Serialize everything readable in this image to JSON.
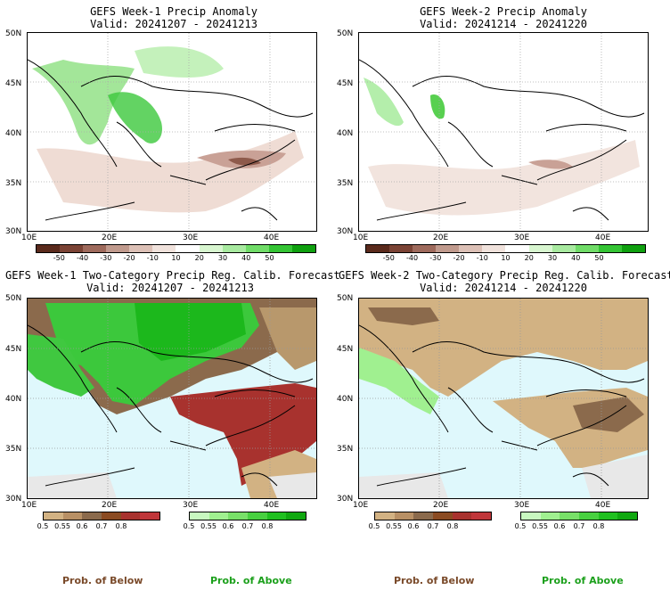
{
  "panels": {
    "p1": {
      "title1": "GEFS Week-1 Precip Anomaly",
      "title2": "Valid: 20241207 - 20241213"
    },
    "p2": {
      "title1": "GEFS Week-2 Precip Anomaly",
      "title2": "Valid: 20241214 - 20241220"
    },
    "p3": {
      "title1": "GEFS Week-1 Two-Category Precip Reg. Calib. Forecast",
      "title2": "Valid: 20241207 - 20241213"
    },
    "p4": {
      "title1": "GEFS Week-2 Two-Category Precip Reg. Calib. Forecast",
      "title2": "Valid: 20241214 - 20241220"
    }
  },
  "axes": {
    "lat": [
      "50N",
      "45N",
      "40N",
      "35N",
      "30N"
    ],
    "lon": [
      "10E",
      "20E",
      "30E",
      "40E"
    ]
  },
  "anomaly_colorbar": {
    "labels": [
      "-50",
      "-40",
      "-30",
      "-20",
      "-10",
      "10",
      "20",
      "30",
      "40",
      "50"
    ],
    "colors": [
      "#5a2a1c",
      "#7b4335",
      "#9e6a5c",
      "#c09a8d",
      "#dcc0b6",
      "#f0e2dc",
      "#ffffff",
      "#d8f6d0",
      "#a8eaa0",
      "#70dc68",
      "#34c434",
      "#0fa00f"
    ]
  },
  "prob_below_colorbar": {
    "labels": [
      "0.5",
      "0.55",
      "0.6",
      "0.7",
      "0.8"
    ],
    "colors": [
      "#d2b283",
      "#b89065",
      "#8b6a4c",
      "#8b4b22",
      "#a8322e",
      "#c0363a"
    ]
  },
  "prob_above_colorbar": {
    "labels": [
      "0.5",
      "0.55",
      "0.6",
      "0.7",
      "0.8"
    ],
    "colors": [
      "#c8f8c0",
      "#a0f090",
      "#78e068",
      "#48d040",
      "#20c020",
      "#10a810"
    ]
  },
  "legend": {
    "below": "Prob. of Below",
    "above": "Prob. of Above",
    "below_color": "#7a4a2a",
    "above_color": "#1ca01c"
  }
}
